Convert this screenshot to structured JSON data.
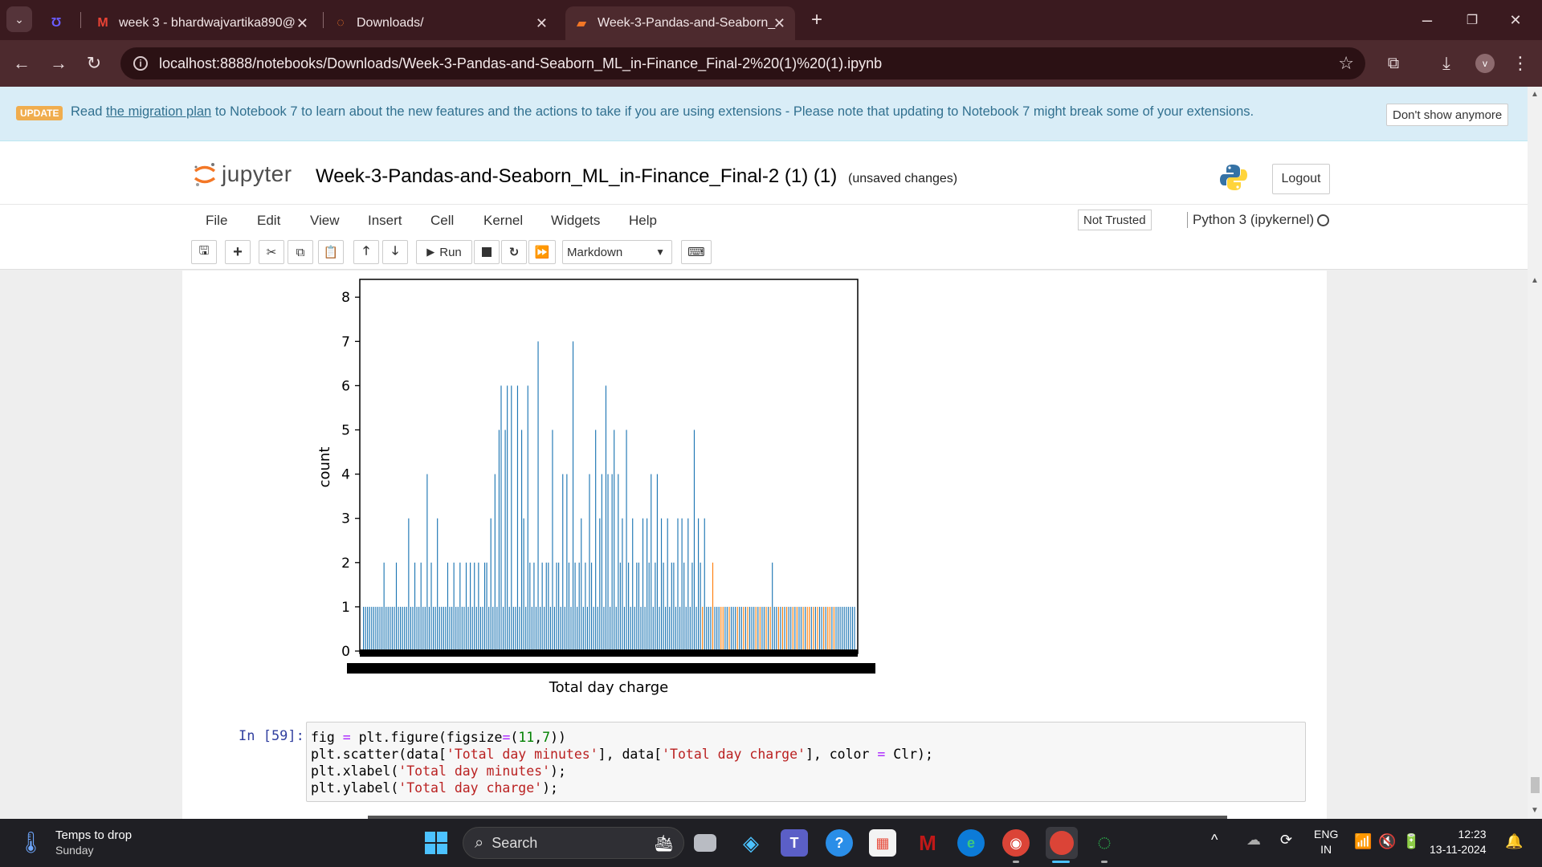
{
  "browser": {
    "tabs": [
      {
        "title": "week 3 - bhardwajvartika890@",
        "icon": "gmail-icon"
      },
      {
        "title": "Downloads/",
        "icon": "jupyter-tab-icon"
      },
      {
        "title": "Week-3-Pandas-and-Seaborn_",
        "icon": "notebook-tab-icon",
        "active": true
      }
    ],
    "url": "localhost:8888/notebooks/Downloads/Week-3-Pandas-and-Seaborn_ML_in-Finance_Final-2%20(1)%20(1).ipynb",
    "profile_initial": "v"
  },
  "notification": {
    "badge": "UPDATE",
    "prefix": "Read",
    "link": "the migration plan",
    "message": "to Notebook 7 to learn about the new features and the actions to take if you are using extensions - Please note that updating to Notebook 7 might break some of your extensions.",
    "dismiss_label": "Don't show anymore"
  },
  "jupyter": {
    "logo_text": "jupyter",
    "notebook_title": "Week-3-Pandas-and-Seaborn_ML_in-Finance_Final-2 (1) (1)",
    "save_status": "(unsaved changes)",
    "logout_label": "Logout",
    "menu": [
      "File",
      "Edit",
      "View",
      "Insert",
      "Cell",
      "Kernel",
      "Widgets",
      "Help"
    ],
    "trust_label": "Not Trusted",
    "kernel_name": "Python 3 (ipykernel)",
    "toolbar": {
      "run_label": "Run",
      "cell_type": "Markdown"
    }
  },
  "chart_data": {
    "type": "bar",
    "title": "",
    "xlabel": "Total day charge",
    "ylabel": "count",
    "yticks": [
      "0",
      "1",
      "2",
      "3",
      "4",
      "5",
      "6",
      "7",
      "8"
    ],
    "ylim": [
      0,
      8.4
    ],
    "series_colors": [
      "#1f77b4",
      "#ff7f0e"
    ],
    "bar_count": 230,
    "values": [
      1,
      1,
      1,
      1,
      1,
      1,
      1,
      1,
      1,
      1,
      2,
      1,
      1,
      1,
      1,
      1,
      2,
      1,
      1,
      1,
      1,
      1,
      3,
      1,
      1,
      2,
      1,
      1,
      2,
      1,
      1,
      4,
      1,
      2,
      1,
      1,
      3,
      1,
      1,
      1,
      1,
      2,
      1,
      1,
      2,
      1,
      1,
      2,
      1,
      1,
      2,
      1,
      2,
      1,
      2,
      1,
      2,
      1,
      1,
      2,
      2,
      1,
      3,
      1,
      4,
      1,
      5,
      6,
      1,
      5,
      6,
      1,
      6,
      1,
      1,
      6,
      1,
      5,
      3,
      1,
      6,
      2,
      1,
      2,
      1,
      7,
      1,
      2,
      1,
      2,
      2,
      1,
      5,
      1,
      2,
      2,
      1,
      4,
      1,
      4,
      2,
      1,
      7,
      2,
      1,
      2,
      3,
      1,
      2,
      1,
      4,
      2,
      1,
      5,
      1,
      3,
      4,
      1,
      6,
      4,
      1,
      4,
      5,
      1,
      4,
      2,
      3,
      1,
      5,
      2,
      1,
      3,
      1,
      2,
      2,
      1,
      3,
      1,
      3,
      2,
      4,
      1,
      2,
      4,
      1,
      3,
      2,
      1,
      3,
      1,
      2,
      2,
      1,
      3,
      1,
      3,
      2,
      1,
      3,
      1,
      2,
      5,
      1,
      3,
      2,
      1,
      3,
      1,
      1,
      1,
      2,
      1,
      1,
      1,
      1,
      1,
      1,
      1,
      1,
      1,
      1,
      1,
      1,
      1,
      1,
      1,
      1,
      1,
      1,
      1,
      1,
      1,
      1,
      1,
      1,
      1,
      1,
      1,
      1,
      2,
      1,
      1,
      1,
      1,
      1,
      1,
      1,
      1,
      1,
      1,
      1,
      1,
      1,
      1,
      1,
      1,
      1,
      1,
      1,
      1,
      1,
      1,
      1,
      1,
      1,
      1,
      1,
      1,
      1,
      1,
      1,
      1,
      1,
      1,
      1,
      1,
      1,
      1,
      1,
      1
    ],
    "series_index": [
      0,
      0,
      0,
      0,
      0,
      0,
      0,
      0,
      0,
      0,
      0,
      0,
      0,
      0,
      0,
      0,
      0,
      0,
      0,
      0,
      0,
      0,
      0,
      0,
      0,
      0,
      0,
      0,
      0,
      0,
      0,
      0,
      0,
      0,
      0,
      0,
      0,
      0,
      0,
      0,
      0,
      0,
      0,
      0,
      0,
      0,
      0,
      0,
      0,
      0,
      0,
      0,
      0,
      0,
      0,
      0,
      0,
      0,
      0,
      0,
      0,
      0,
      0,
      0,
      0,
      0,
      0,
      0,
      0,
      0,
      0,
      0,
      0,
      0,
      0,
      0,
      0,
      0,
      0,
      0,
      0,
      0,
      0,
      0,
      0,
      0,
      0,
      0,
      0,
      0,
      0,
      0,
      0,
      0,
      0,
      0,
      0,
      0,
      0,
      0,
      0,
      0,
      0,
      0,
      0,
      0,
      0,
      0,
      0,
      0,
      0,
      0,
      0,
      0,
      0,
      0,
      0,
      0,
      0,
      0,
      0,
      0,
      0,
      0,
      0,
      0,
      0,
      0,
      0,
      0,
      0,
      0,
      0,
      0,
      0,
      0,
      0,
      0,
      0,
      0,
      0,
      0,
      0,
      0,
      0,
      0,
      0,
      0,
      0,
      0,
      0,
      0,
      0,
      0,
      0,
      0,
      0,
      0,
      0,
      0,
      0,
      0,
      0,
      0,
      0,
      1,
      0,
      0,
      0,
      0,
      1,
      0,
      0,
      0,
      1,
      1,
      0,
      0,
      1,
      0,
      0,
      0,
      1,
      0,
      0,
      1,
      0,
      1,
      0,
      0,
      0,
      1,
      0,
      1,
      0,
      0,
      1,
      0,
      1,
      0,
      0,
      0,
      1,
      0,
      1,
      0,
      1,
      0,
      0,
      1,
      0,
      1,
      0,
      0,
      1,
      0,
      1,
      1,
      0,
      1,
      0,
      1,
      0,
      0,
      1,
      0,
      1,
      1,
      0,
      1
    ]
  },
  "code_cell": {
    "prompt": "In [59]:",
    "lines": [
      "fig = plt.figure(figsize=(11,7))",
      "plt.scatter(data['Total day minutes'], data['Total day charge'], color = Clr);",
      "plt.xlabel('Total day minutes');",
      "plt.ylabel('Total day charge');"
    ]
  },
  "taskbar": {
    "weather_title": "Temps to drop",
    "weather_sub": "Sunday",
    "search_placeholder": "Search",
    "lang_1": "ENG",
    "lang_2": "IN",
    "time": "12:23",
    "date": "13-11-2024"
  }
}
